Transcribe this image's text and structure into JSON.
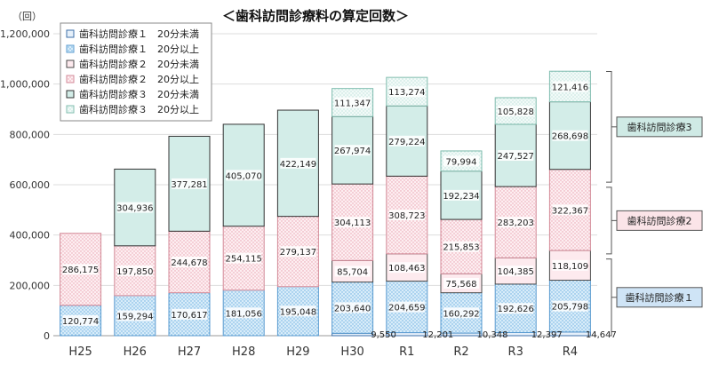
{
  "chart_data": {
    "type": "bar",
    "stacked": true,
    "title": "＜歯科訪問診療料の算定回数＞",
    "unit_label": "（回）",
    "ylim": [
      0,
      1200000
    ],
    "yticks": [
      "0",
      "200,000",
      "400,000",
      "600,000",
      "800,000",
      "1,000,000",
      "1,200,000"
    ],
    "grid": true,
    "legend_position": "top-left",
    "categories": [
      "H25",
      "H26",
      "H27",
      "H28",
      "H29",
      "H30",
      "R1",
      "R2",
      "R3",
      "R4"
    ],
    "series": [
      {
        "name": "歯科訪問診療１　20分未満",
        "color": "#dce9f7",
        "pattern": "solid",
        "values": [
          null,
          null,
          null,
          null,
          null,
          9550,
          12201,
          10348,
          12397,
          14647
        ]
      },
      {
        "name": "歯科訪問診療１　20分以上",
        "color": "#a9d4f0",
        "pattern": "dots",
        "values": [
          120774,
          159294,
          170617,
          181056,
          195048,
          203640,
          204659,
          160292,
          192626,
          205798
        ]
      },
      {
        "name": "歯科訪問診療２　20分未満",
        "color": "#fbe4e8",
        "pattern": "solid",
        "values": [
          null,
          null,
          null,
          null,
          null,
          85704,
          108463,
          75568,
          104385,
          118109
        ]
      },
      {
        "name": "歯科訪問診療２　20分以上",
        "color": "#f7c8d0",
        "pattern": "dots",
        "values": [
          286175,
          197850,
          244678,
          254115,
          279137,
          304113,
          308723,
          215853,
          283203,
          322367
        ]
      },
      {
        "name": "歯科訪問診療３　20分未満",
        "color": "#cfeae5",
        "pattern": "solid",
        "values": [
          null,
          304936,
          377281,
          405070,
          422149,
          267974,
          279224,
          192234,
          247527,
          268698
        ]
      },
      {
        "name": "歯科訪問診療３　20分以上",
        "color": "#eaf6f3",
        "pattern": "dots",
        "values": [
          null,
          null,
          null,
          null,
          null,
          111347,
          113274,
          79994,
          105828,
          121416
        ]
      }
    ],
    "category_labels": [
      {
        "text": "歯科訪問診療3",
        "color": "#cfeae5"
      },
      {
        "text": "歯科訪問診療2",
        "color": "#fbe4e8"
      },
      {
        "text": "歯科訪問診療１",
        "color": "#cfe4f6"
      }
    ]
  }
}
